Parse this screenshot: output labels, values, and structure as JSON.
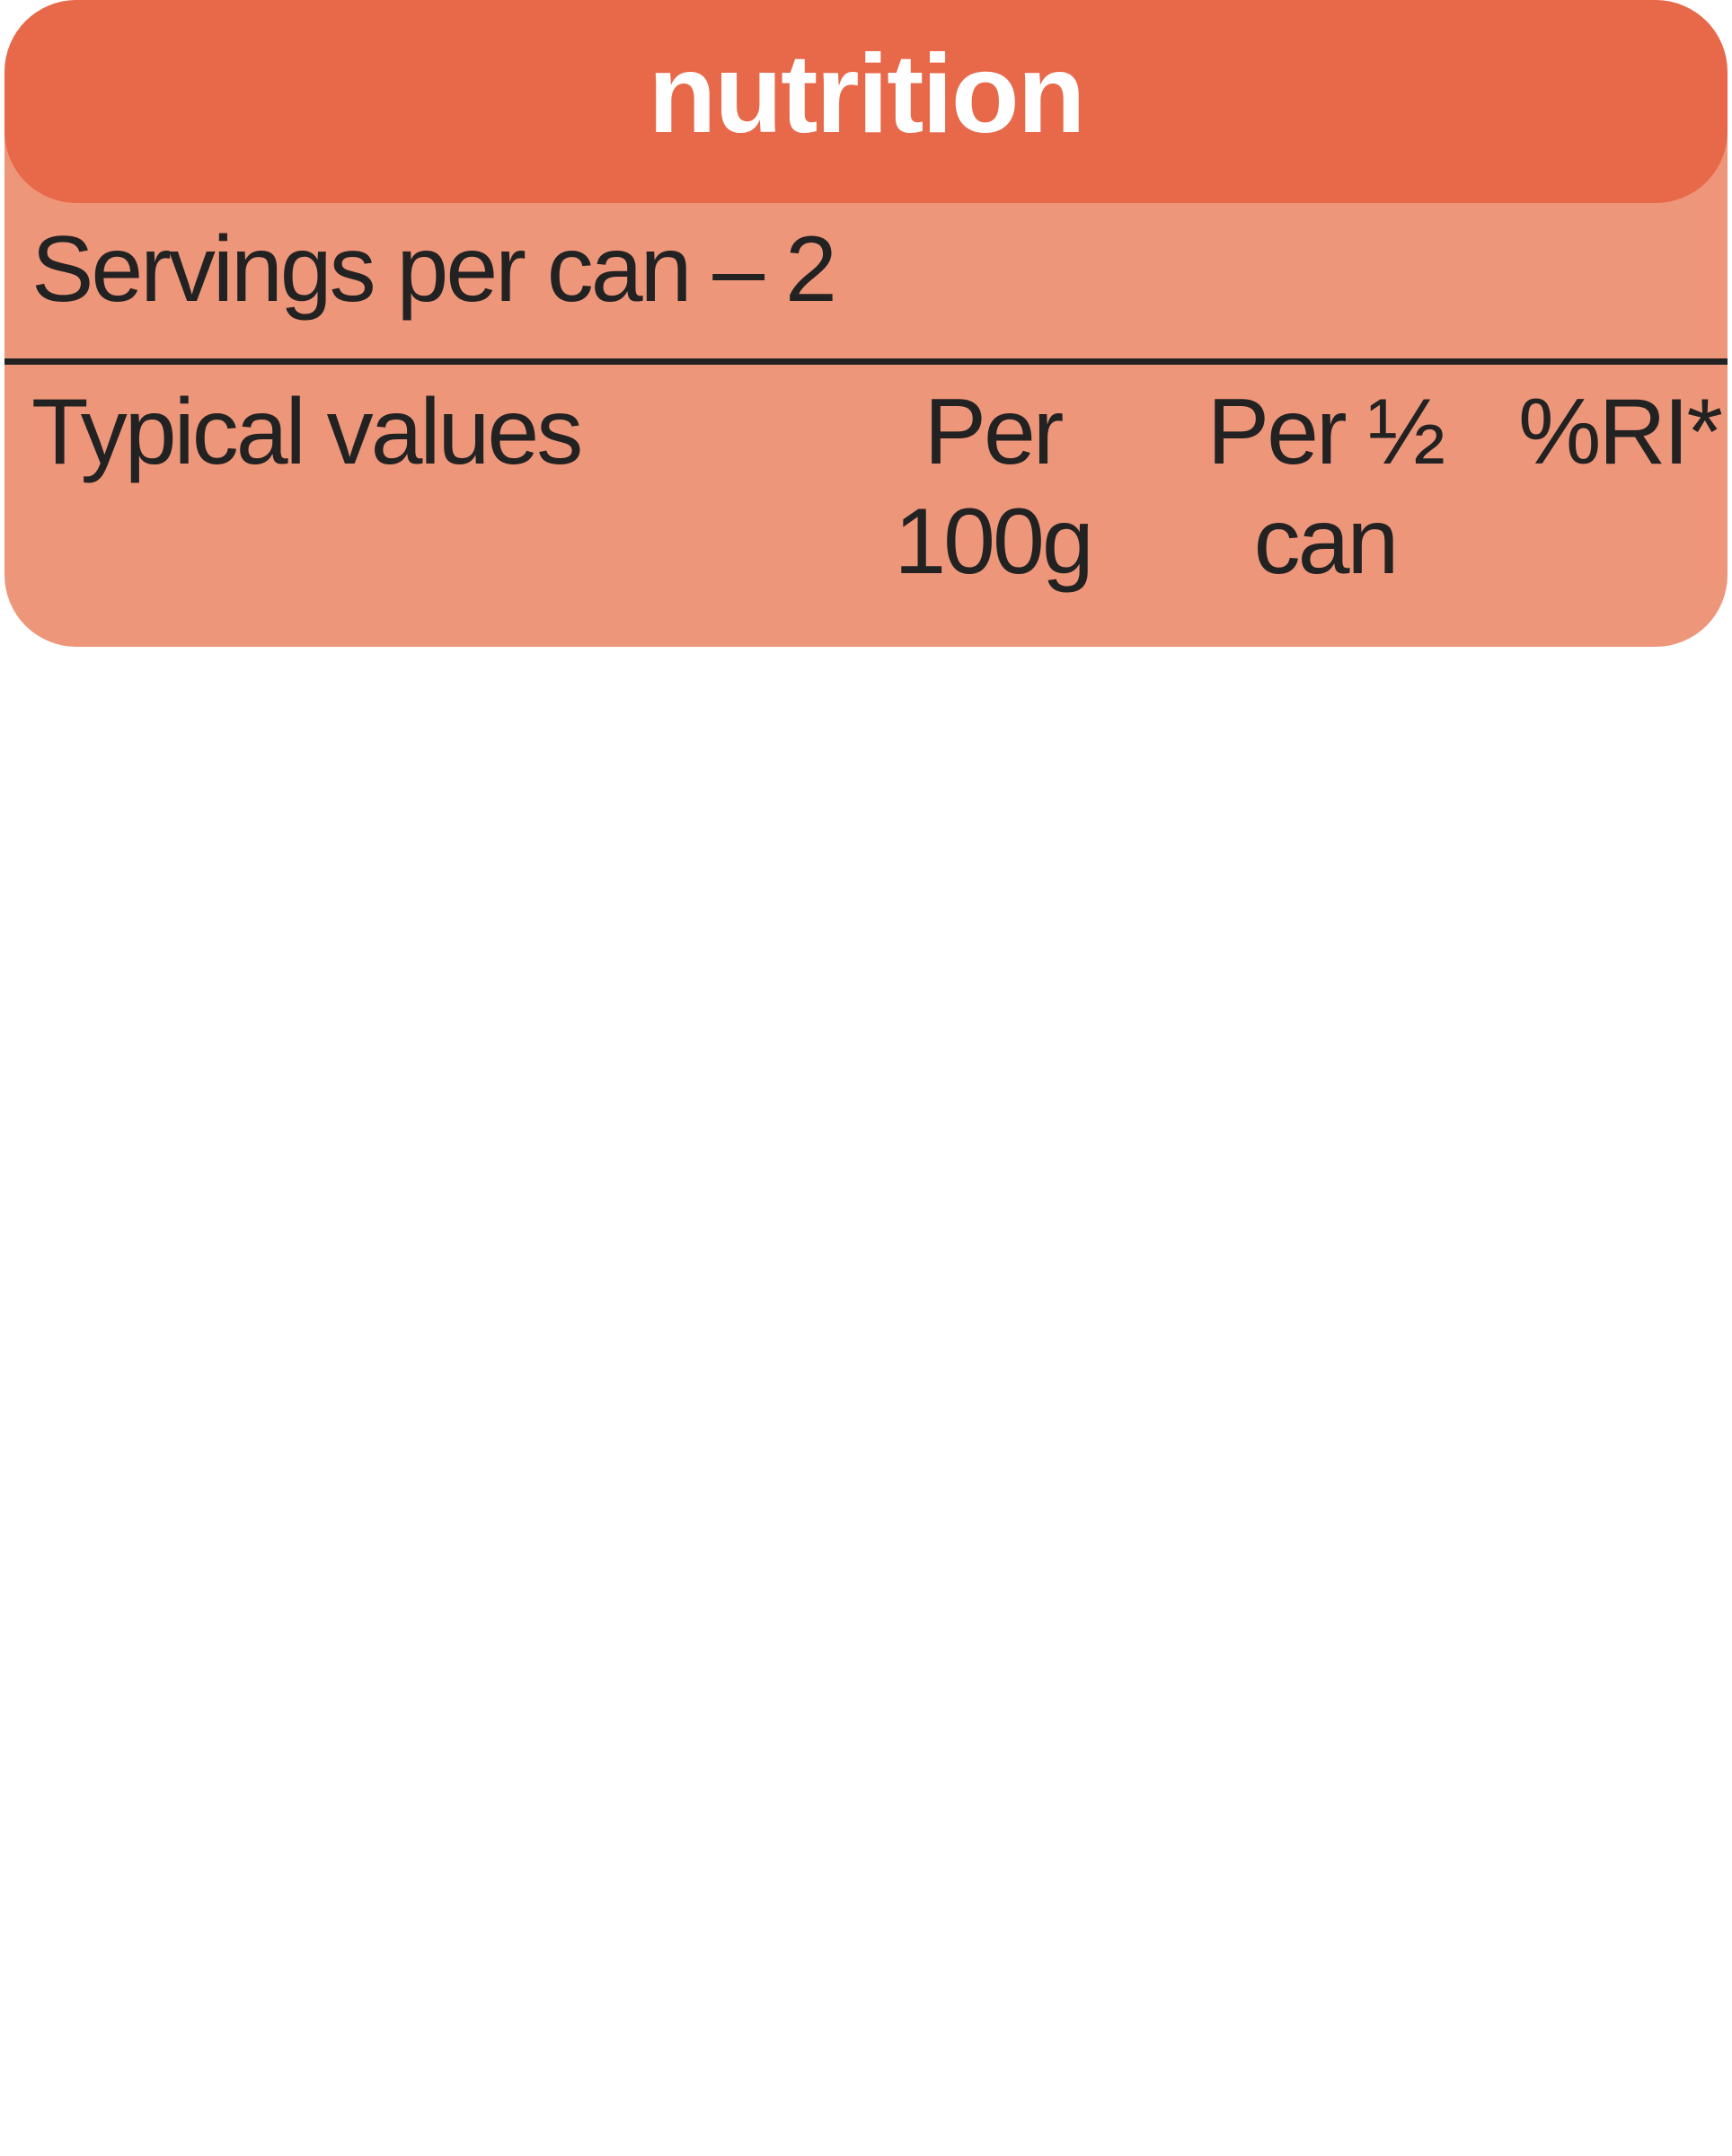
{
  "header": {
    "title": "nutrition"
  },
  "servings": "Servings per can – 2",
  "table": {
    "columns": [
      "Typical values",
      "Per 100g",
      "Per ½ can",
      "%RI*"
    ]
  }
}
